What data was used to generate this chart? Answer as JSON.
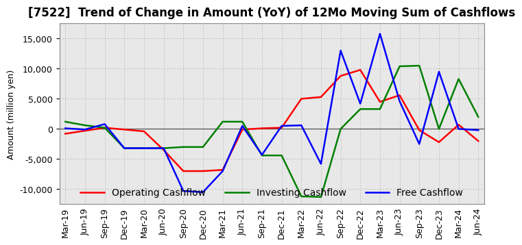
{
  "title": "[7522]  Trend of Change in Amount (YoY) of 12Mo Moving Sum of Cashflows",
  "ylabel": "Amount (million yen)",
  "x_labels": [
    "Mar-19",
    "Jun-19",
    "Sep-19",
    "Dec-19",
    "Mar-20",
    "Jun-20",
    "Sep-20",
    "Dec-20",
    "Mar-21",
    "Jun-21",
    "Sep-21",
    "Dec-21",
    "Mar-22",
    "Jun-22",
    "Sep-22",
    "Dec-22",
    "Mar-23",
    "Jun-23",
    "Sep-23",
    "Dec-23",
    "Mar-24",
    "Jun-24"
  ],
  "operating_cashflow": [
    -800,
    -300,
    200,
    -100,
    -400,
    -3500,
    -7000,
    -7000,
    -6800,
    -100,
    100,
    200,
    5000,
    5300,
    8800,
    9800,
    4500,
    5600,
    -200,
    -2200,
    700,
    -2000
  ],
  "investing_cashflow": [
    1200,
    600,
    200,
    -3200,
    -3200,
    -3200,
    -3000,
    -3000,
    1200,
    1200,
    -4400,
    -4400,
    -11200,
    -11300,
    0,
    3300,
    3300,
    10400,
    10500,
    0,
    8300,
    2000
  ],
  "free_cashflow": [
    100,
    -100,
    800,
    -3200,
    -3200,
    -3200,
    -10300,
    -10500,
    -7000,
    500,
    -4300,
    500,
    600,
    -5800,
    13000,
    4200,
    15800,
    4600,
    -2500,
    9500,
    0,
    -200
  ],
  "operating_color": "#ff0000",
  "investing_color": "#008000",
  "free_color": "#0000ff",
  "line_width": 1.8,
  "ylim": [
    -12500,
    17500
  ],
  "yticks": [
    -10000,
    -5000,
    0,
    5000,
    10000,
    15000
  ],
  "grid_color": "#999999",
  "bg_color": "#ffffff",
  "plot_bg_color": "#e8e8e8",
  "title_fontsize": 12,
  "axis_label_fontsize": 9,
  "tick_fontsize": 9,
  "legend_fontsize": 10
}
